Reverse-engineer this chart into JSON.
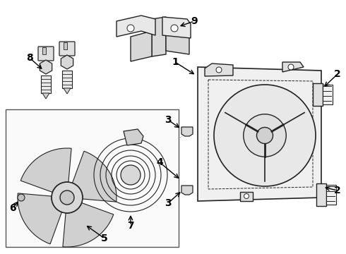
{
  "background_color": "#ffffff",
  "line_color": "#222222",
  "label_color": "#000000",
  "fig_w": 4.9,
  "fig_h": 3.6,
  "dpi": 100
}
